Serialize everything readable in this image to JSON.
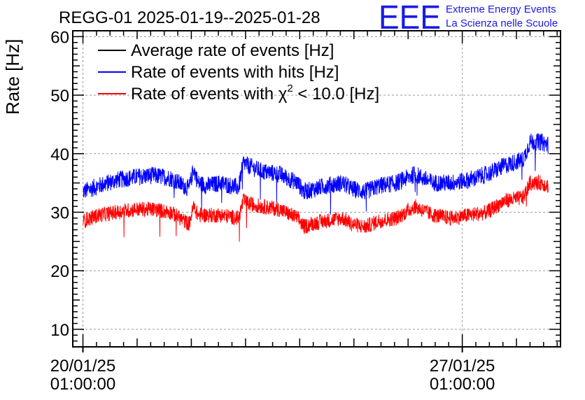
{
  "header": {
    "title": "REGG-01 2025-01-19--2025-01-28",
    "logo_text": "EEE",
    "logo_line1": "Extreme Energy Events",
    "logo_line2": "La Scienza nelle Scuole"
  },
  "chart_data": {
    "type": "line",
    "title": "REGG-01 2025-01-19--2025-01-28",
    "xlabel": "",
    "ylabel": "Rate [Hz]",
    "ylim": [
      7,
      61
    ],
    "xlim": [
      "2025-01-19T20:30:00",
      "2025-01-28T20:30:00"
    ],
    "x_ticks": [
      {
        "at": "2025-01-20T01:00:00",
        "line1": "20/01/25",
        "line2": "01:00:00"
      },
      {
        "at": "2025-01-27T01:00:00",
        "line1": "27/01/25",
        "line2": "01:00:00"
      }
    ],
    "y_ticks": [
      10,
      20,
      30,
      40,
      50,
      60
    ],
    "grid": true,
    "legend_position": "top-left",
    "series": [
      {
        "name": "Average rate of events [Hz]",
        "name_main": "Average rate of events [Hz]",
        "color": "#000000",
        "x": [],
        "values": []
      },
      {
        "name": "Rate of events with hits [Hz]",
        "name_main": "Rate of events with hits [Hz]",
        "color": "#0000ff",
        "noise": 1.5,
        "x": [
          "2025-01-20T01:00:00",
          "2025-01-20T08:00:00",
          "2025-01-20T16:00:00",
          "2025-01-21T00:00:00",
          "2025-01-21T08:00:00",
          "2025-01-21T16:00:00",
          "2025-01-22T00:00:00",
          "2025-01-22T02:00:00",
          "2025-01-22T04:00:00",
          "2025-01-22T08:00:00",
          "2025-01-22T14:00:00",
          "2025-01-22T22:00:00",
          "2025-01-23T00:00:00",
          "2025-01-23T02:00:00",
          "2025-01-23T08:00:00",
          "2025-01-23T16:00:00",
          "2025-01-24T00:00:00",
          "2025-01-24T03:00:00",
          "2025-01-24T06:00:00",
          "2025-01-24T12:00:00",
          "2025-01-24T20:00:00",
          "2025-01-25T00:00:00",
          "2025-01-25T06:00:00",
          "2025-01-25T12:00:00",
          "2025-01-25T20:00:00",
          "2025-01-26T04:00:00",
          "2025-01-26T12:00:00",
          "2025-01-26T20:00:00",
          "2025-01-27T04:00:00",
          "2025-01-27T12:00:00",
          "2025-01-27T20:00:00",
          "2025-01-28T04:00:00",
          "2025-01-28T07:00:00",
          "2025-01-28T12:00:00",
          "2025-01-28T15:00:00"
        ],
        "values": [
          33.5,
          34.5,
          35.5,
          36,
          36.3,
          35.8,
          34,
          37.5,
          35,
          34.5,
          35,
          34.2,
          38.5,
          38,
          37,
          36.5,
          35,
          33.5,
          33.8,
          34.5,
          35,
          34,
          33.5,
          34.5,
          35,
          36.5,
          35,
          35,
          35.5,
          36.5,
          38,
          39,
          42,
          42,
          41.5
        ]
      },
      {
        "name": "Rate of events with χ² < 10.0 [Hz]",
        "name_main": "Rate of events with χ",
        "name_sup": "2",
        "name_tail": " < 10.0 [Hz]",
        "color": "#ff0000",
        "noise": 1.3,
        "x": [
          "2025-01-20T01:00:00",
          "2025-01-20T08:00:00",
          "2025-01-20T16:00:00",
          "2025-01-21T00:00:00",
          "2025-01-21T08:00:00",
          "2025-01-21T16:00:00",
          "2025-01-22T00:00:00",
          "2025-01-22T02:00:00",
          "2025-01-22T04:00:00",
          "2025-01-22T08:00:00",
          "2025-01-22T14:00:00",
          "2025-01-22T22:00:00",
          "2025-01-23T00:00:00",
          "2025-01-23T02:00:00",
          "2025-01-23T08:00:00",
          "2025-01-23T16:00:00",
          "2025-01-24T00:00:00",
          "2025-01-24T03:00:00",
          "2025-01-24T06:00:00",
          "2025-01-24T12:00:00",
          "2025-01-24T20:00:00",
          "2025-01-25T00:00:00",
          "2025-01-25T06:00:00",
          "2025-01-25T12:00:00",
          "2025-01-25T20:00:00",
          "2025-01-26T04:00:00",
          "2025-01-26T12:00:00",
          "2025-01-26T20:00:00",
          "2025-01-27T04:00:00",
          "2025-01-27T12:00:00",
          "2025-01-27T20:00:00",
          "2025-01-28T04:00:00",
          "2025-01-28T07:00:00",
          "2025-01-28T12:00:00",
          "2025-01-28T15:00:00"
        ],
        "values": [
          28.5,
          29.5,
          30,
          30.5,
          30.5,
          30,
          28,
          31,
          29.5,
          29.5,
          29.5,
          29,
          32,
          31.5,
          31,
          30.5,
          29,
          27.5,
          28,
          28.5,
          29,
          28,
          27.5,
          28.5,
          29,
          31,
          29.5,
          29,
          29.5,
          30,
          32,
          32.5,
          35,
          35,
          34.5
        ]
      }
    ]
  }
}
